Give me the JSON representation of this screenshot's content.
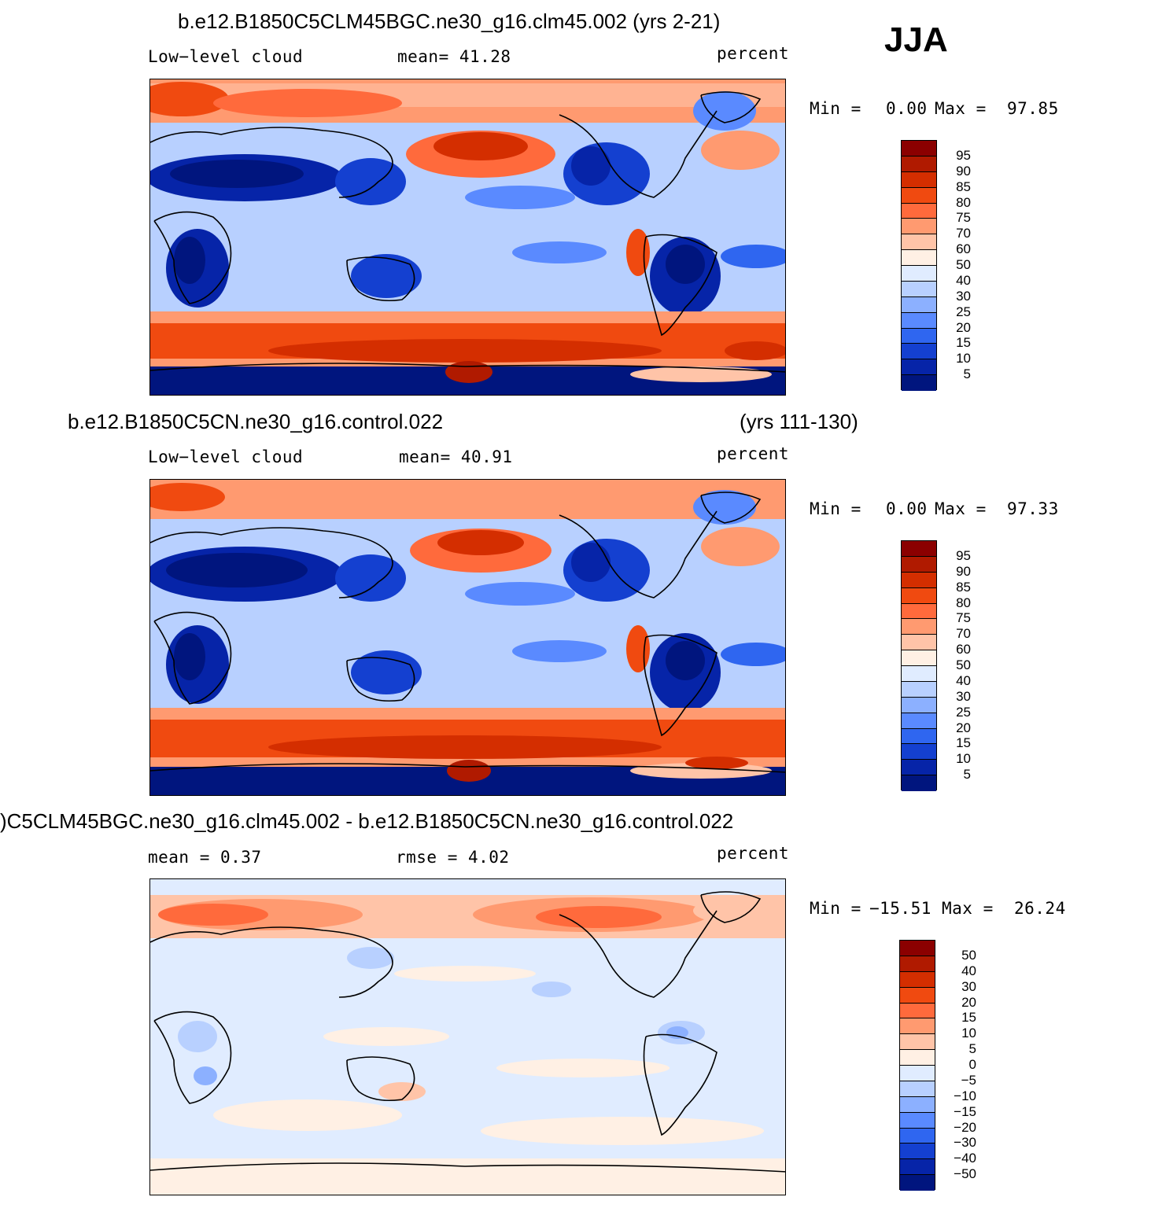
{
  "season": "JJA",
  "chart_data": [
    {
      "type": "heatmap",
      "title": "b.e12.B1850C5CLM45BGC.ne30_g16.clm45.002 (yrs 2-21)",
      "left_label": "Low−level  cloud",
      "center_label": "mean=   41.28",
      "units": "percent",
      "min_label": "Min  =",
      "min_value": "0.00",
      "max_label": "Max  =",
      "max_value": "97.85",
      "colorbar_levels": [
        "95",
        "90",
        "85",
        "80",
        "75",
        "70",
        "60",
        "50",
        "40",
        "30",
        "25",
        "20",
        "15",
        "10",
        "5"
      ],
      "colorbar_colors": [
        "#8b0000",
        "#b01a00",
        "#d42e00",
        "#f04a10",
        "#ff6a3c",
        "#ff9a70",
        "#ffc4a8",
        "#fff0e4",
        "#e0ecff",
        "#b8d0ff",
        "#8cb0ff",
        "#5a8aff",
        "#2f66f0",
        "#1440d0",
        "#0624a8",
        "#00157e"
      ]
    },
    {
      "type": "heatmap",
      "title_left": "b.e12.B1850C5CN.ne30_g16.control.022",
      "title_right": "(yrs 111-130)",
      "left_label": "Low−level  cloud",
      "center_label": "mean=   40.91",
      "units": "percent",
      "min_label": "Min  =",
      "min_value": "0.00",
      "max_label": "Max  =",
      "max_value": "97.33",
      "colorbar_levels": [
        "95",
        "90",
        "85",
        "80",
        "75",
        "70",
        "60",
        "50",
        "40",
        "30",
        "25",
        "20",
        "15",
        "10",
        "5"
      ],
      "colorbar_colors": [
        "#8b0000",
        "#b01a00",
        "#d42e00",
        "#f04a10",
        "#ff6a3c",
        "#ff9a70",
        "#ffc4a8",
        "#fff0e4",
        "#e0ecff",
        "#b8d0ff",
        "#8cb0ff",
        "#5a8aff",
        "#2f66f0",
        "#1440d0",
        "#0624a8",
        "#00157e"
      ]
    },
    {
      "type": "heatmap",
      "title": ")C5CLM45BGC.ne30_g16.clm45.002 - b.e12.B1850C5CN.ne30_g16.control.022",
      "left_label": "mean  =    0.37",
      "center_label": "rmse  =    4.02",
      "units": "percent",
      "min_label": "Min  =",
      "min_value": "−15.51",
      "max_label": "Max  =",
      "max_value": "26.24",
      "colorbar_levels": [
        "50",
        "40",
        "30",
        "20",
        "15",
        "10",
        "5",
        "0",
        "−5",
        "−10",
        "−15",
        "−20",
        "−30",
        "−40",
        "−50"
      ],
      "colorbar_colors": [
        "#8b0000",
        "#b01a00",
        "#d42e00",
        "#f04a10",
        "#ff6a3c",
        "#ff9a70",
        "#ffc4a8",
        "#fff0e4",
        "#e0ecff",
        "#b8d0ff",
        "#8cb0ff",
        "#5a8aff",
        "#2f66f0",
        "#1440d0",
        "#0624a8",
        "#00157e"
      ]
    }
  ]
}
